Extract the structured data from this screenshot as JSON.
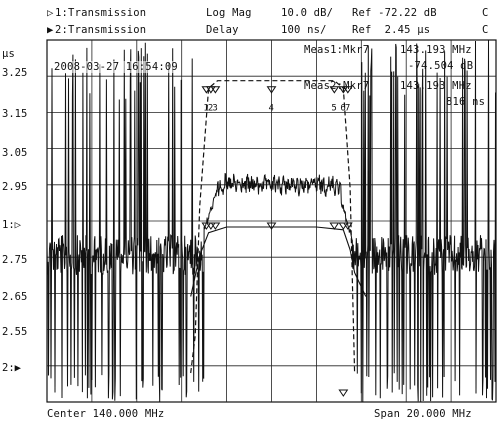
{
  "header": {
    "trace1": {
      "marker": "▷",
      "label": "1:Transmission",
      "format": "Log Mag",
      "scale": "10.0 dB/",
      "ref": "Ref -72.22 dB",
      "flag": "C"
    },
    "trace2": {
      "marker": "▶",
      "label": "2:Transmission",
      "format": "Delay",
      "scale": "100 ns/",
      "ref": "Ref  2.45 µs",
      "flag": "C"
    }
  },
  "unit_label": "µs",
  "timestamp": "2008-03-27 16:54:09",
  "y_ticks": [
    "3.25",
    "3.15",
    "3.05",
    "2.95",
    "1:▷",
    "2.75",
    "2.65",
    "2.55",
    "2:▶"
  ],
  "meas1": {
    "label": "Meas1:Mkr7",
    "freq": "143.193 MHz",
    "value": "-74.504 dB"
  },
  "meas2": {
    "label": "Meas2:Mkr7",
    "freq": "143.193 MHz",
    "value": "816 ns"
  },
  "footer": {
    "center": "Center 140.000 MHz",
    "span": "Span 20.000 MHz"
  },
  "chart_data": {
    "type": "line",
    "x_unit": "MHz",
    "x_range": [
      130,
      150
    ],
    "series": [
      {
        "name": "1:Transmission",
        "x": [
          136.4,
          136.8,
          137.2,
          138,
          139,
          140,
          141,
          142,
          143.2,
          143.5,
          143.7,
          144.2
        ],
        "values": [
          -72.2,
          -65,
          -61,
          -60,
          -60,
          -60,
          -60,
          -60,
          -60.5,
          -64,
          -68,
          -72.2
        ]
      },
      {
        "name": "2:Transmission",
        "x": [
          136.4,
          136.6,
          136.8,
          137.2,
          137.6,
          138,
          139,
          140,
          141,
          142,
          142.8,
          143.2,
          143.5,
          143.7
        ],
        "values": [
          2.45,
          2.55,
          2.9,
          3.22,
          3.24,
          3.24,
          3.24,
          3.24,
          3.24,
          3.24,
          3.24,
          3.22,
          2.95,
          2.45
        ]
      }
    ],
    "markers": [
      "1",
      "2",
      "3",
      "4",
      "5",
      "6",
      "7"
    ]
  }
}
